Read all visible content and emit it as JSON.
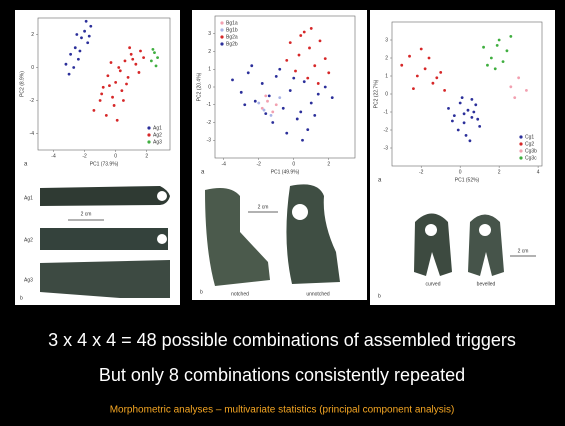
{
  "chart_data": [
    {
      "type": "scatter",
      "label": "a",
      "x_label": "PC1 (73.9%)",
      "y_label": "PC2 (8.9%)",
      "xlim": [
        -5,
        3.5
      ],
      "xticks": [
        -4,
        -2,
        0,
        2
      ],
      "ylim": [
        -5,
        3
      ],
      "yticks": [
        -4,
        -2,
        0,
        2
      ],
      "legend": "lower right",
      "series": [
        {
          "name": "Ag1",
          "color": "#2b2f9a",
          "x": [
            -3.2,
            -2.9,
            -2.6,
            -2.4,
            -2.2,
            -2,
            -1.8,
            -1.6,
            -2.7,
            -2.3,
            -1.9,
            -3,
            -2.5,
            -1.7
          ],
          "y": [
            0.2,
            0.8,
            1.2,
            0.5,
            1.8,
            2.2,
            1.5,
            2.5,
            0,
            1,
            2.8,
            -0.4,
            2,
            1.9
          ]
        },
        {
          "name": "Ag2",
          "color": "#d62728",
          "x": [
            -1.4,
            -1,
            -0.8,
            -0.5,
            -0.2,
            0,
            0.2,
            0.4,
            0.6,
            0.8,
            1,
            1.3,
            1.6,
            -0.6,
            -0.1,
            0.3,
            0.7,
            1.1,
            1.5,
            -0.9,
            -0.3,
            0.5,
            0.9,
            1.8,
            0.1,
            -0.4
          ],
          "y": [
            -2.6,
            -2,
            -1.2,
            -0.5,
            -1.8,
            -0.9,
            0,
            -1.4,
            0.4,
            -0.6,
            0.8,
            0.2,
            1,
            -2.9,
            -2.3,
            -0.2,
            -1,
            0.5,
            -0.3,
            -1.6,
            0.3,
            -2,
            1.2,
            0.6,
            -3.2,
            -1.1
          ]
        },
        {
          "name": "Ag3",
          "color": "#3fae3f",
          "x": [
            2.3,
            2.5,
            2.7,
            2.6,
            2.4
          ],
          "y": [
            0.4,
            0.9,
            0.6,
            0.1,
            1.1
          ]
        }
      ]
    },
    {
      "type": "scatter",
      "label": "a",
      "x_label": "PC1 (49.9%)",
      "y_label": "PC2 (20.4%)",
      "xlim": [
        -4.5,
        3.5
      ],
      "xticks": [
        -4,
        -2,
        0,
        2
      ],
      "ylim": [
        -4,
        4
      ],
      "yticks": [
        -3,
        -2,
        -1,
        0,
        1,
        2,
        3
      ],
      "legend": "upper left",
      "series": [
        {
          "name": "Bg1a",
          "color": "#f2a0b0",
          "x": [
            -1.8,
            -1.5,
            -1.2,
            -1.6,
            -1
          ],
          "y": [
            -1.2,
            -0.8,
            -1.4,
            -0.5,
            -1
          ]
        },
        {
          "name": "Bg1b",
          "color": "#a9b3e6",
          "x": [
            -2,
            -1.3,
            -0.8,
            -1.7
          ],
          "y": [
            -0.9,
            -1.6,
            -0.6,
            -1.3
          ]
        },
        {
          "name": "Bg2a",
          "color": "#d62728",
          "x": [
            -0.2,
            0.3,
            0.6,
            0.9,
            1.2,
            1.5,
            0.1,
            0.8,
            1.8,
            0.4,
            1,
            1.4,
            -0.4,
            2
          ],
          "y": [
            2.5,
            1.8,
            3.1,
            2.2,
            1.2,
            2.6,
            0.9,
            0.5,
            1.6,
            2.9,
            3.3,
            0.2,
            1.5,
            0.8
          ]
        },
        {
          "name": "Bg2b",
          "color": "#2b2f9a",
          "x": [
            -3.5,
            -3,
            -2.6,
            -2.2,
            -1.8,
            -1.4,
            -1,
            -0.6,
            -0.2,
            0.2,
            0.6,
            1,
            1.4,
            1.8,
            -2.4,
            -1.2,
            -0.4,
            0.4,
            1.2,
            -2.8,
            -0.8,
            0,
            0.8,
            2.2,
            -1.6,
            0.5
          ],
          "y": [
            0.4,
            -0.3,
            0.8,
            -0.8,
            0.2,
            -0.5,
            0.6,
            -1.2,
            -0.2,
            -1.8,
            0.3,
            -0.9,
            -0.4,
            0,
            1.2,
            -2,
            -2.6,
            -1.4,
            -1.6,
            -1,
            1,
            0.5,
            -2.4,
            -0.6,
            -1.5,
            -3
          ]
        }
      ]
    },
    {
      "type": "scatter",
      "label": "a",
      "x_label": "PC1 (52%)",
      "y_label": "PC2 (22.7%)",
      "xlim": [
        -3.5,
        4.2
      ],
      "xticks": [
        -2,
        0,
        2,
        4
      ],
      "ylim": [
        -4,
        4
      ],
      "yticks": [
        -3,
        -2,
        -1,
        0,
        1,
        2,
        3
      ],
      "legend": "lower right",
      "series": [
        {
          "name": "Cg1",
          "color": "#2b2f9a",
          "x": [
            -0.6,
            -0.3,
            0,
            0.2,
            0.4,
            0.6,
            0.8,
            1,
            -0.1,
            0.3,
            0.7,
            0.1,
            0.5,
            -0.4,
            0.9,
            0.2,
            0.6
          ],
          "y": [
            -0.8,
            -1.2,
            -0.5,
            -1.6,
            -0.9,
            -1.3,
            -0.6,
            -1.8,
            -2,
            -2.3,
            -1,
            -0.2,
            -2.6,
            -1.5,
            -1.4,
            -1.1,
            -0.3
          ]
        },
        {
          "name": "Cg2",
          "color": "#d62728",
          "x": [
            -3,
            -2.6,
            -2.2,
            -1.8,
            -1.4,
            -1,
            -2.4,
            -1.6,
            -0.8,
            -2,
            -1.2
          ],
          "y": [
            1.6,
            2.1,
            1,
            1.4,
            0.6,
            1.2,
            0.3,
            2,
            0.2,
            2.5,
            0.9
          ]
        },
        {
          "name": "Cg3b",
          "color": "#f2a0b0",
          "x": [
            2.6,
            3,
            3.4,
            2.8
          ],
          "y": [
            0.4,
            0.9,
            0.2,
            -0.2
          ]
        },
        {
          "name": "Cg3c",
          "color": "#3fae3f",
          "x": [
            1.2,
            1.6,
            2,
            2.4,
            1.8,
            2.2,
            1.4,
            2.6,
            1.9
          ],
          "y": [
            2.6,
            2,
            3,
            2.4,
            1.4,
            1.8,
            1.6,
            3.2,
            2.7
          ]
        }
      ]
    }
  ],
  "photos": [
    {
      "items": [
        "Ag1",
        "Ag2",
        "Ag3"
      ],
      "scale": "2 cm",
      "label": "b"
    },
    {
      "items": [
        "notched",
        "unnotched"
      ],
      "scale": "2 cm",
      "label": "b"
    },
    {
      "items": [
        "curved",
        "bevelled"
      ],
      "scale": "2 cm",
      "label": "b"
    }
  ],
  "slide": {
    "line1": "3 x 4 x 4 = 48 possible combinations of assembled triggers",
    "line2": "But only 8 combinations consistently repeated",
    "caption": "Morphometric analyses – multivariate statistics (principal component analysis)"
  }
}
